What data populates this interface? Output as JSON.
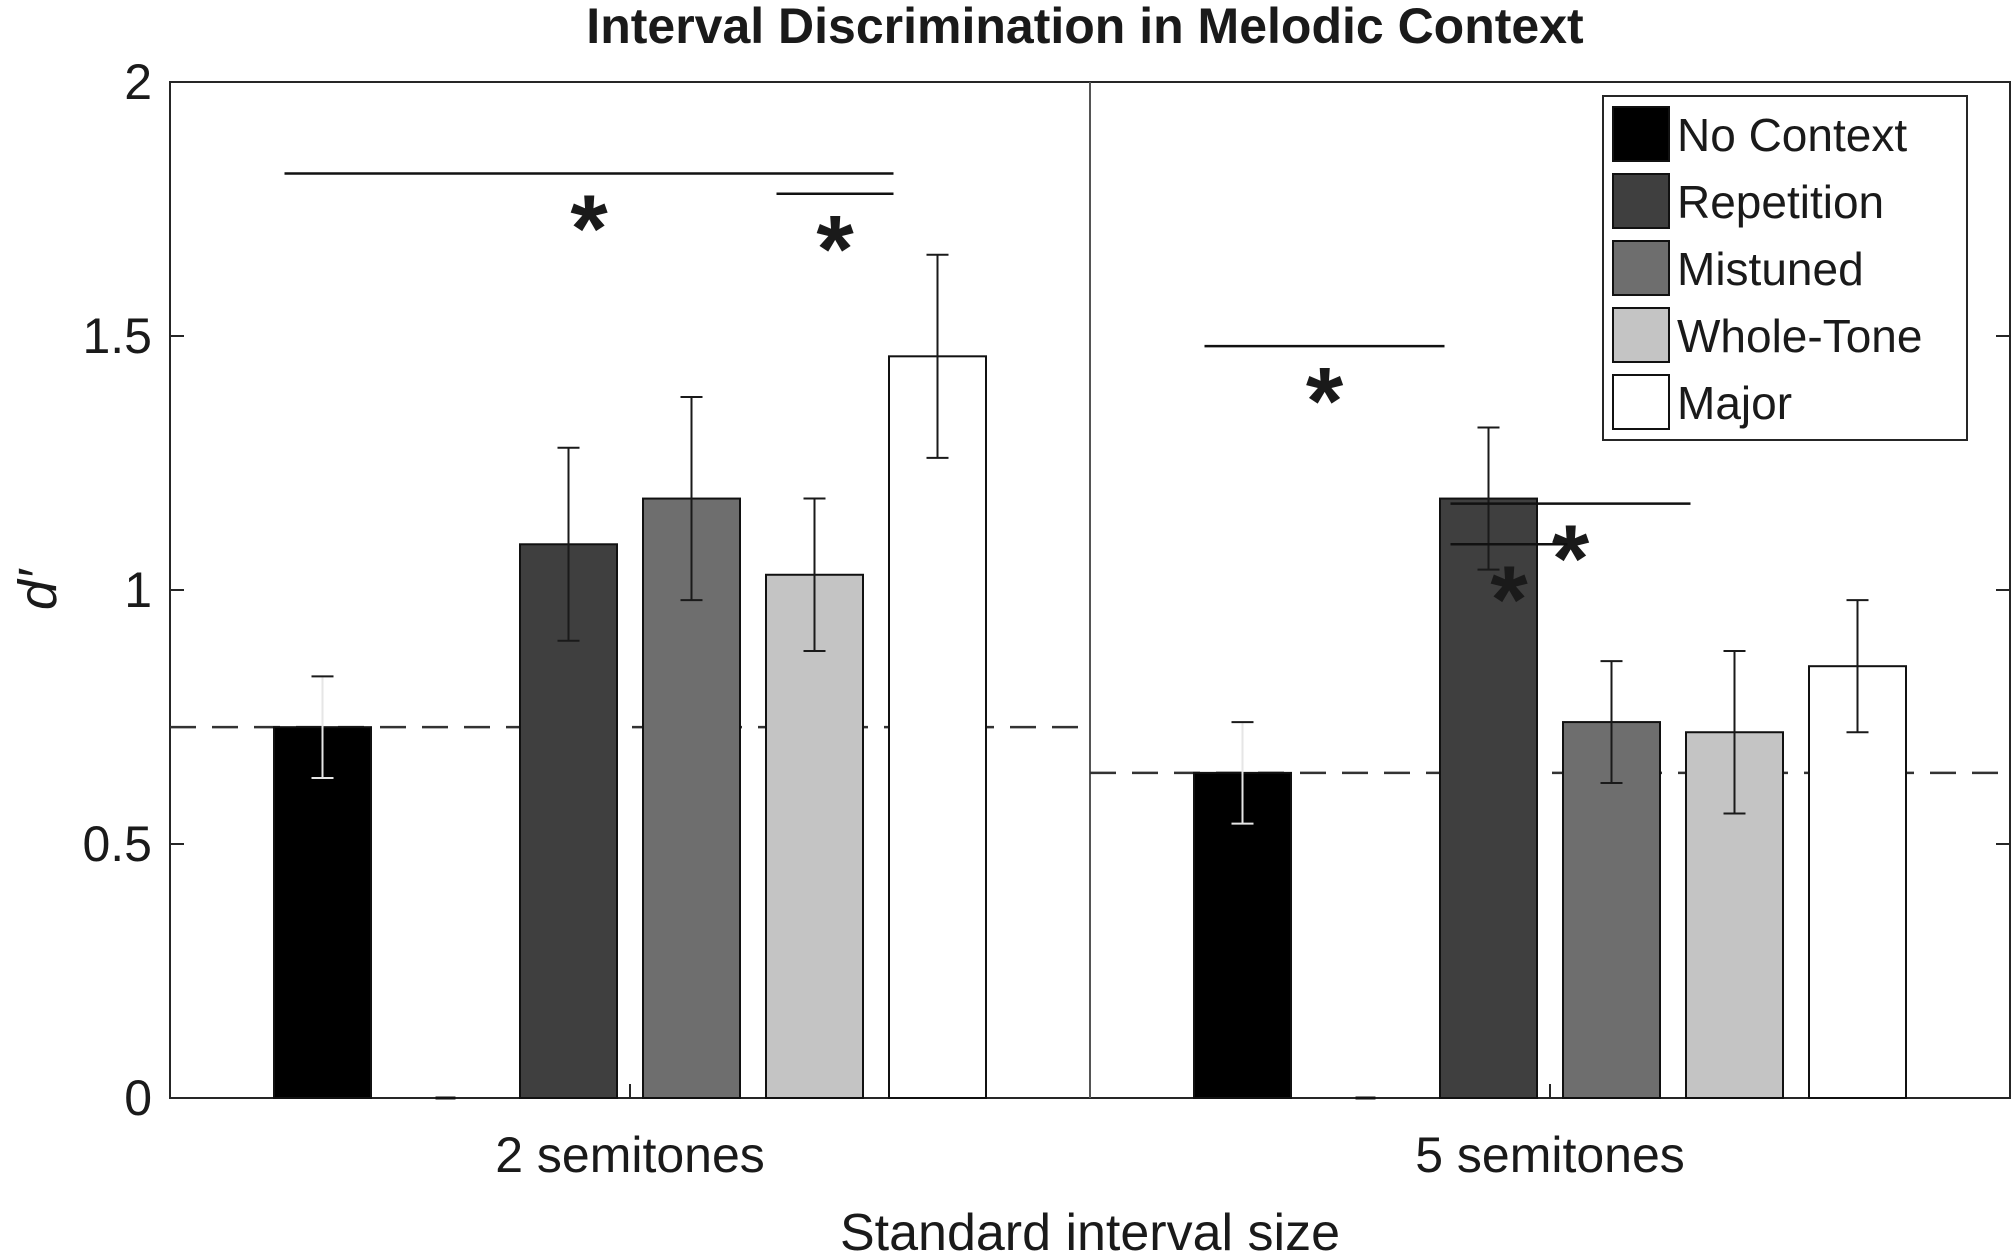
{
  "chart_data": {
    "type": "bar",
    "title": "Interval Discrimination in Melodic Context",
    "xlabel": "Standard interval size",
    "ylabel": "d′",
    "ylim": [
      0,
      2
    ],
    "yticks": [
      0,
      0.5,
      1,
      1.5,
      2
    ],
    "ytick_labels": [
      "0",
      "0.5",
      "1",
      "1.5",
      "2"
    ],
    "categories": [
      "2 semitones",
      "5 semitones"
    ],
    "series": [
      {
        "name": "No Context",
        "color": "#000000",
        "values": [
          0.73,
          0.64
        ],
        "errors": [
          0.1,
          0.1
        ]
      },
      {
        "name": "Repetition",
        "color": "#3f3f3f",
        "values": [
          1.09,
          1.18
        ],
        "errors": [
          0.19,
          0.14
        ]
      },
      {
        "name": "Mistuned",
        "color": "#6e6e6e",
        "values": [
          1.18,
          0.74
        ],
        "errors": [
          0.2,
          0.12
        ]
      },
      {
        "name": "Whole-Tone",
        "color": "#c4c4c4",
        "values": [
          1.03,
          0.72
        ],
        "errors": [
          0.15,
          0.16
        ]
      },
      {
        "name": "Major",
        "color": "#ffffff",
        "values": [
          1.46,
          0.85
        ],
        "errors": [
          0.2,
          0.13
        ]
      }
    ],
    "baselines": [
      0.73,
      0.64
    ],
    "significance": [
      {
        "group": 0,
        "from": "No Context",
        "to": "Major",
        "y": 1.82,
        "label": "*"
      },
      {
        "group": 0,
        "from": "Whole-Tone",
        "to": "Major",
        "y": 1.78,
        "label": "*"
      },
      {
        "group": 1,
        "from": "No Context",
        "to": "Repetition",
        "y": 1.48,
        "label": "*"
      },
      {
        "group": 1,
        "from": "Repetition",
        "to": "Whole-Tone",
        "y": 1.17,
        "label": "*"
      },
      {
        "group": 1,
        "from": "Repetition",
        "to": "Mistuned",
        "y": 1.09,
        "label": "*"
      }
    ],
    "legend_position": "top-right",
    "grid": false
  }
}
